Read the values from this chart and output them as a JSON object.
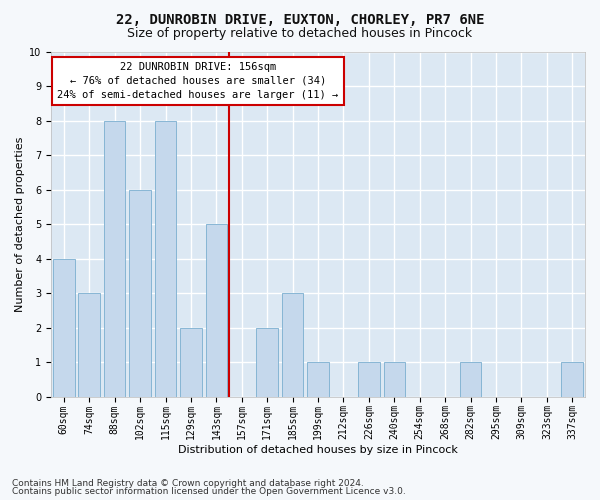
{
  "title1": "22, DUNROBIN DRIVE, EUXTON, CHORLEY, PR7 6NE",
  "title2": "Size of property relative to detached houses in Pincock",
  "xlabel": "Distribution of detached houses by size in Pincock",
  "ylabel": "Number of detached properties",
  "categories": [
    "60sqm",
    "74sqm",
    "88sqm",
    "102sqm",
    "115sqm",
    "129sqm",
    "143sqm",
    "157sqm",
    "171sqm",
    "185sqm",
    "199sqm",
    "212sqm",
    "226sqm",
    "240sqm",
    "254sqm",
    "268sqm",
    "282sqm",
    "295sqm",
    "309sqm",
    "323sqm",
    "337sqm"
  ],
  "values": [
    4,
    3,
    8,
    6,
    8,
    2,
    5,
    0,
    2,
    3,
    1,
    0,
    1,
    1,
    0,
    0,
    1,
    0,
    0,
    0,
    1
  ],
  "bar_color": "#c5d8ec",
  "bar_edge_color": "#7aaecf",
  "reference_line_color": "#cc0000",
  "reference_line_x": 6.5,
  "ylim": [
    0,
    10
  ],
  "yticks": [
    0,
    1,
    2,
    3,
    4,
    5,
    6,
    7,
    8,
    9,
    10
  ],
  "annotation_line1": "22 DUNROBIN DRIVE: 156sqm",
  "annotation_line2": "← 76% of detached houses are smaller (34)",
  "annotation_line3": "24% of semi-detached houses are larger (11) →",
  "footer1": "Contains HM Land Registry data © Crown copyright and database right 2024.",
  "footer2": "Contains public sector information licensed under the Open Government Licence v3.0.",
  "plot_bg_color": "#dce8f3",
  "fig_bg_color": "#f5f8fb",
  "grid_color": "#ffffff",
  "title1_fontsize": 10,
  "title2_fontsize": 9,
  "tick_fontsize": 7,
  "ylabel_fontsize": 8,
  "xlabel_fontsize": 8,
  "footer_fontsize": 6.5,
  "ann_fontsize": 7.5
}
